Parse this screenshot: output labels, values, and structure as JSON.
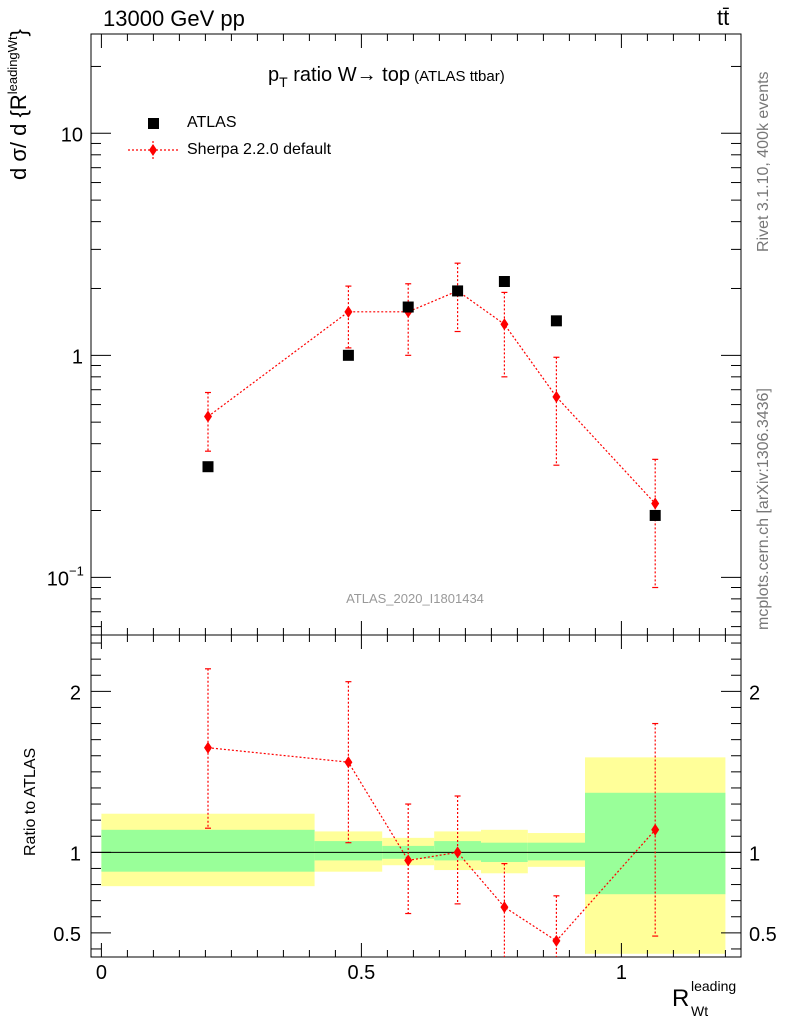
{
  "header": {
    "beam": "13000 GeV pp",
    "process": "tt̄",
    "side_label_events": "Rivet 3.1.10,  400k events",
    "side_label_url": "mcplots.cern.ch [arXiv:1306.3436]",
    "analysis_label": "ATLAS_2020_I1801434"
  },
  "title": {
    "main_before": "p",
    "main_sub": "T",
    "main_after": " ratio W→ top",
    "small": " (ATLAS ttbar)"
  },
  "axes": {
    "xlabel_main": "R",
    "xlabel_sup": "leading",
    "xlabel_sub": "Wt",
    "ylabel_main": "d σ/ d {R",
    "ylabel_sup": "leading",
    "ylabel_sub": "Wt",
    "ylabel_close": "}",
    "ratio_ylabel": "Ratio to ATLAS"
  },
  "legend": [
    {
      "label": "ATLAS",
      "color": "#000000",
      "marker": "square"
    },
    {
      "label": "Sherpa 2.2.0 default",
      "color": "#ff0000",
      "marker": "diamond"
    }
  ],
  "colors": {
    "data": "#000000",
    "mc": "#ff0000",
    "band_inner": "#99ff99",
    "band_outer": "#ffff99"
  },
  "chart_data": {
    "type": "scatter",
    "main_panel": {
      "yscale": "log",
      "xlim": [
        -0.02,
        1.23
      ],
      "ylim": [
        0.055,
        28
      ],
      "yticks": [
        0.1,
        1,
        10
      ],
      "ytick_labels": [
        "10^-1",
        "1",
        "10"
      ],
      "xticks": [
        0,
        0.5,
        1
      ],
      "xtick_labels": [
        "0",
        "0.5",
        "1"
      ],
      "series": [
        {
          "name": "ATLAS",
          "x": [
            0.205,
            0.475,
            0.59,
            0.685,
            0.775,
            0.875,
            1.065
          ],
          "y": [
            0.315,
            1.0,
            1.65,
            1.95,
            2.15,
            1.43,
            0.19
          ]
        },
        {
          "name": "Sherpa 2.2.0 default",
          "x": [
            0.205,
            0.475,
            0.59,
            0.685,
            0.775,
            0.875,
            1.065
          ],
          "y": [
            0.53,
            1.57,
            1.57,
            1.95,
            1.38,
            0.65,
            0.215
          ],
          "yerr_low": [
            0.37,
            1.08,
            1.0,
            1.28,
            0.8,
            0.32,
            0.09
          ],
          "yerr_high": [
            0.68,
            2.05,
            2.1,
            2.6,
            1.92,
            0.98,
            0.34
          ]
        }
      ]
    },
    "ratio_panel": {
      "ylim": [
        0.35,
        2.35
      ],
      "yticks": [
        0.5,
        1,
        2
      ],
      "ytick_labels": [
        "0.5",
        "1",
        "2"
      ],
      "reference_line": 1,
      "mc_x": [
        0.205,
        0.475,
        0.59,
        0.685,
        0.775,
        0.875,
        1.065
      ],
      "mc_y": [
        1.65,
        1.56,
        0.95,
        1.0,
        0.66,
        0.45,
        1.14
      ],
      "mc_err_low": [
        1.15,
        1.06,
        0.62,
        0.68,
        0.35,
        0.3,
        0.48
      ],
      "mc_err_high": [
        2.14,
        2.06,
        1.3,
        1.35,
        0.93,
        0.73,
        1.8
      ],
      "bins": [
        {
          "x0": 0.0,
          "x1": 0.41,
          "inner": [
            0.88,
            1.14
          ],
          "outer": [
            0.79,
            1.24
          ]
        },
        {
          "x0": 0.41,
          "x1": 0.54,
          "inner": [
            0.95,
            1.07
          ],
          "outer": [
            0.88,
            1.13
          ]
        },
        {
          "x0": 0.54,
          "x1": 0.64,
          "inner": [
            0.96,
            1.04
          ],
          "outer": [
            0.92,
            1.09
          ]
        },
        {
          "x0": 0.64,
          "x1": 0.73,
          "inner": [
            0.95,
            1.07
          ],
          "outer": [
            0.89,
            1.13
          ]
        },
        {
          "x0": 0.73,
          "x1": 0.82,
          "inner": [
            0.94,
            1.06
          ],
          "outer": [
            0.87,
            1.14
          ]
        },
        {
          "x0": 0.82,
          "x1": 0.93,
          "inner": [
            0.95,
            1.06
          ],
          "outer": [
            0.91,
            1.12
          ]
        },
        {
          "x0": 0.93,
          "x1": 1.2,
          "inner": [
            0.74,
            1.37
          ],
          "outer": [
            0.37,
            1.59
          ]
        }
      ]
    }
  }
}
